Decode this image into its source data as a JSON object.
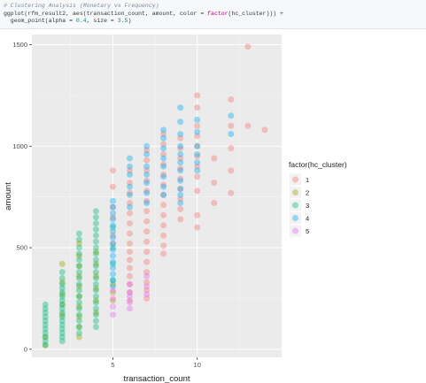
{
  "code": {
    "comment": "# Clustering Analysis (Monetary vs Frequency)",
    "line2_prefix": "ggplot(rfm_result2, aes(transaction_count, amount, color = ",
    "line2_fn": "factor",
    "line2_suffix": "(hc_cluster))) +",
    "line3_prefix": "  geom_point(alpha = ",
    "line3_alpha": "0.4",
    "line3_mid": ", size = ",
    "line3_size": "3.5",
    "line3_suffix": ")"
  },
  "colors": {
    "panel_bg": "#ebebeb",
    "grid_major": "#ffffff",
    "cluster_1": "#f8766d",
    "cluster_2": "#a3a500",
    "cluster_3": "#00bf7d",
    "cluster_4": "#00b0f6",
    "cluster_5": "#e76bf3"
  },
  "chart_data": {
    "type": "scatter",
    "title": "",
    "xlabel": "transaction_count",
    "ylabel": "amount",
    "xlim": [
      0.2,
      15
    ],
    "ylim": [
      -40,
      1550
    ],
    "x_ticks": [
      5,
      10
    ],
    "x_tick_labels": [
      "5",
      "10"
    ],
    "y_ticks": [
      0,
      500,
      1000,
      1500
    ],
    "y_tick_labels": [
      "0",
      "500",
      "1000",
      "1500"
    ],
    "grid": true,
    "alpha": 0.4,
    "point_size": 3.5,
    "legend": {
      "title": "factor(hc_cluster)",
      "position": "right",
      "entries": [
        "1",
        "2",
        "3",
        "4",
        "5"
      ]
    },
    "series": [
      {
        "name": "1",
        "color": "#f8766d",
        "points": [
          [
            5,
            880
          ],
          [
            5,
            800
          ],
          [
            5,
            700
          ],
          [
            5,
            650
          ],
          [
            5,
            560
          ],
          [
            5,
            520
          ],
          [
            6,
            880
          ],
          [
            6,
            820
          ],
          [
            6,
            770
          ],
          [
            6,
            720
          ],
          [
            6,
            670
          ],
          [
            6,
            620
          ],
          [
            6,
            570
          ],
          [
            6,
            520
          ],
          [
            6,
            480
          ],
          [
            6,
            440
          ],
          [
            6,
            400
          ],
          [
            6,
            360
          ],
          [
            6,
            320
          ],
          [
            6,
            280
          ],
          [
            6,
            240
          ],
          [
            7,
            980
          ],
          [
            7,
            930
          ],
          [
            7,
            880
          ],
          [
            7,
            830
          ],
          [
            7,
            780
          ],
          [
            7,
            730
          ],
          [
            7,
            680
          ],
          [
            7,
            630
          ],
          [
            7,
            580
          ],
          [
            7,
            530
          ],
          [
            7,
            480
          ],
          [
            7,
            430
          ],
          [
            7,
            380
          ],
          [
            7,
            330
          ],
          [
            7,
            290
          ],
          [
            7,
            250
          ],
          [
            8,
            1060
          ],
          [
            8,
            1010
          ],
          [
            8,
            960
          ],
          [
            8,
            910
          ],
          [
            8,
            860
          ],
          [
            8,
            810
          ],
          [
            8,
            760
          ],
          [
            8,
            710
          ],
          [
            8,
            660
          ],
          [
            8,
            610
          ],
          [
            8,
            560
          ],
          [
            8,
            510
          ],
          [
            8,
            470
          ],
          [
            9,
            1040
          ],
          [
            9,
            990
          ],
          [
            9,
            940
          ],
          [
            9,
            890
          ],
          [
            9,
            840
          ],
          [
            9,
            790
          ],
          [
            9,
            740
          ],
          [
            9,
            690
          ],
          [
            9,
            640
          ],
          [
            10,
            1250
          ],
          [
            10,
            1190
          ],
          [
            10,
            1100
          ],
          [
            10,
            1050
          ],
          [
            10,
            1000
          ],
          [
            10,
            950
          ],
          [
            10,
            900
          ],
          [
            10,
            850
          ],
          [
            10,
            780
          ],
          [
            10,
            660
          ],
          [
            10,
            600
          ],
          [
            11,
            940
          ],
          [
            11,
            820
          ],
          [
            11,
            720
          ],
          [
            12,
            1230
          ],
          [
            12,
            1100
          ],
          [
            12,
            990
          ],
          [
            12,
            880
          ],
          [
            12,
            770
          ],
          [
            13,
            1490
          ],
          [
            13,
            1100
          ],
          [
            14,
            1080
          ]
        ]
      },
      {
        "name": "2",
        "color": "#a3a500",
        "points": [
          [
            1,
            60
          ],
          [
            1,
            20
          ],
          [
            2,
            420
          ],
          [
            2,
            330
          ],
          [
            2,
            270
          ],
          [
            2,
            220
          ],
          [
            2,
            170
          ],
          [
            3,
            520
          ],
          [
            3,
            460
          ],
          [
            3,
            410
          ],
          [
            3,
            360
          ],
          [
            3,
            310
          ],
          [
            3,
            260
          ],
          [
            3,
            210
          ],
          [
            3,
            160
          ],
          [
            3,
            110
          ],
          [
            3,
            60
          ],
          [
            4,
            480
          ],
          [
            4,
            420
          ],
          [
            4,
            360
          ],
          [
            4,
            300
          ],
          [
            4,
            240
          ],
          [
            4,
            180
          ],
          [
            5,
            320
          ],
          [
            5,
            280
          ],
          [
            5,
            240
          ]
        ]
      },
      {
        "name": "3",
        "color": "#00bf7d",
        "points": [
          [
            1,
            220
          ],
          [
            1,
            200
          ],
          [
            1,
            180
          ],
          [
            1,
            160
          ],
          [
            1,
            140
          ],
          [
            1,
            120
          ],
          [
            1,
            100
          ],
          [
            1,
            80
          ],
          [
            1,
            60
          ],
          [
            1,
            40
          ],
          [
            1,
            20
          ],
          [
            2,
            380
          ],
          [
            2,
            350
          ],
          [
            2,
            320
          ],
          [
            2,
            300
          ],
          [
            2,
            280
          ],
          [
            2,
            260
          ],
          [
            2,
            240
          ],
          [
            2,
            220
          ],
          [
            2,
            200
          ],
          [
            2,
            180
          ],
          [
            2,
            160
          ],
          [
            2,
            140
          ],
          [
            2,
            120
          ],
          [
            2,
            100
          ],
          [
            2,
            80
          ],
          [
            2,
            60
          ],
          [
            2,
            40
          ],
          [
            3,
            570
          ],
          [
            3,
            540
          ],
          [
            3,
            500
          ],
          [
            3,
            470
          ],
          [
            3,
            440
          ],
          [
            3,
            410
          ],
          [
            3,
            380
          ],
          [
            3,
            350
          ],
          [
            3,
            320
          ],
          [
            3,
            290
          ],
          [
            3,
            260
          ],
          [
            3,
            230
          ],
          [
            3,
            200
          ],
          [
            3,
            170
          ],
          [
            3,
            140
          ],
          [
            3,
            110
          ],
          [
            3,
            80
          ],
          [
            4,
            680
          ],
          [
            4,
            650
          ],
          [
            4,
            620
          ],
          [
            4,
            590
          ],
          [
            4,
            560
          ],
          [
            4,
            530
          ],
          [
            4,
            500
          ],
          [
            4,
            470
          ],
          [
            4,
            440
          ],
          [
            4,
            410
          ],
          [
            4,
            380
          ],
          [
            4,
            350
          ],
          [
            4,
            320
          ],
          [
            4,
            290
          ],
          [
            4,
            260
          ],
          [
            4,
            230
          ],
          [
            4,
            200
          ],
          [
            4,
            170
          ],
          [
            4,
            140
          ],
          [
            4,
            110
          ],
          [
            5,
            600
          ],
          [
            5,
            500
          ],
          [
            5,
            420
          ],
          [
            5,
            340
          ]
        ]
      },
      {
        "name": "4",
        "color": "#00b0f6",
        "points": [
          [
            5,
            730
          ],
          [
            5,
            700
          ],
          [
            5,
            670
          ],
          [
            5,
            640
          ],
          [
            5,
            610
          ],
          [
            5,
            580
          ],
          [
            5,
            550
          ],
          [
            5,
            520
          ],
          [
            5,
            490
          ],
          [
            5,
            460
          ],
          [
            5,
            430
          ],
          [
            5,
            400
          ],
          [
            5,
            370
          ],
          [
            5,
            340
          ],
          [
            5,
            310
          ],
          [
            6,
            940
          ],
          [
            6,
            900
          ],
          [
            6,
            860
          ],
          [
            6,
            800
          ],
          [
            6,
            760
          ],
          [
            6,
            700
          ],
          [
            7,
            1000
          ],
          [
            7,
            960
          ],
          [
            7,
            900
          ],
          [
            7,
            860
          ],
          [
            7,
            820
          ],
          [
            7,
            770
          ],
          [
            7,
            720
          ],
          [
            8,
            1080
          ],
          [
            8,
            1040
          ],
          [
            8,
            990
          ],
          [
            8,
            940
          ],
          [
            8,
            900
          ],
          [
            8,
            850
          ],
          [
            8,
            800
          ],
          [
            8,
            760
          ],
          [
            9,
            1190
          ],
          [
            9,
            1120
          ],
          [
            9,
            1060
          ],
          [
            9,
            1000
          ],
          [
            9,
            960
          ],
          [
            9,
            920
          ],
          [
            9,
            880
          ],
          [
            9,
            830
          ],
          [
            9,
            790
          ],
          [
            9,
            760
          ],
          [
            9,
            720
          ],
          [
            10,
            1130
          ],
          [
            10,
            1070
          ],
          [
            10,
            1000
          ],
          [
            10,
            960
          ],
          [
            10,
            920
          ],
          [
            10,
            880
          ],
          [
            12,
            1150
          ],
          [
            12,
            1060
          ]
        ]
      },
      {
        "name": "5",
        "color": "#e76bf3",
        "points": [
          [
            5,
            290
          ],
          [
            5,
            250
          ],
          [
            5,
            210
          ],
          [
            5,
            170
          ],
          [
            6,
            320
          ],
          [
            6,
            280
          ],
          [
            6,
            260
          ],
          [
            6,
            230
          ],
          [
            6,
            200
          ],
          [
            7,
            360
          ],
          [
            7,
            310
          ],
          [
            7,
            270
          ]
        ]
      }
    ]
  }
}
